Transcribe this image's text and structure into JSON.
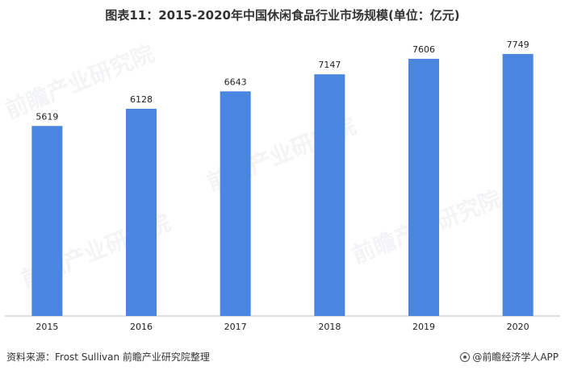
{
  "title": "图表11：2015-2020年中国休闲食品行业市场规模(单位：亿元)",
  "source": "资料来源：Frost Sullivan 前瞻产业研究院整理",
  "brand": "@前瞻经济学人APP",
  "watermark": "前瞻产业研究院",
  "colors": {
    "bar": "#4a86e0",
    "axis": "#bfbfbf"
  },
  "chart_data": {
    "type": "bar",
    "title": "图表11：2015-2020年中国休闲食品行业市场规模(单位：亿元)",
    "xlabel": "",
    "ylabel": "",
    "categories": [
      "2015",
      "2016",
      "2017",
      "2018",
      "2019",
      "2020"
    ],
    "values": [
      5619,
      6128,
      6643,
      7147,
      7606,
      7749
    ],
    "grid": false,
    "legend": "none"
  }
}
